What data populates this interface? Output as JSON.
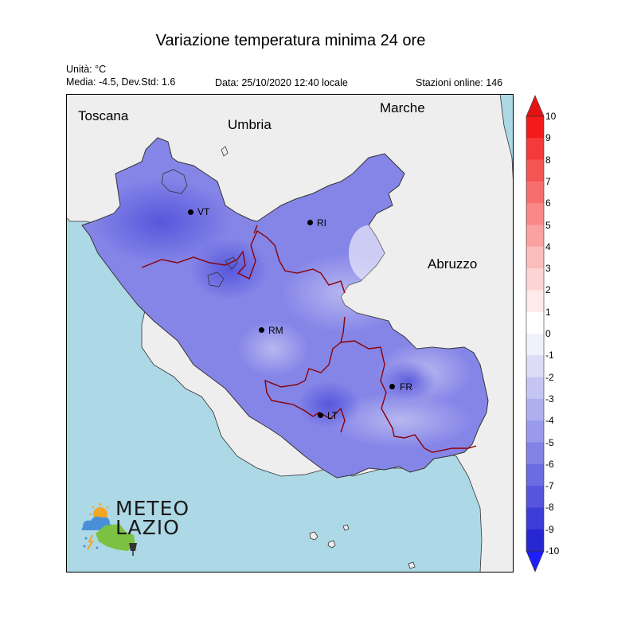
{
  "title": "Variazione temperatura minima 24 ore",
  "unit_label": "Unità: °C",
  "stats_label": "Media: -4.5, Dev.Std: 1.6",
  "date_label": "Data: 25/10/2020 12:40 locale",
  "stations_label": "Stazioni online: 146",
  "regions": [
    "Toscana",
    "Umbria",
    "Marche",
    "Abruzzo"
  ],
  "cities": [
    {
      "code": "VT"
    },
    {
      "code": "RI"
    },
    {
      "code": "RM"
    },
    {
      "code": "FR"
    },
    {
      "code": "LT"
    }
  ],
  "colorbar": {
    "ticks": [
      "10",
      "9",
      "8",
      "7",
      "6",
      "5",
      "4",
      "3",
      "2",
      "1",
      "0",
      "-1",
      "-2",
      "-3",
      "-4",
      "-5",
      "-6",
      "-7",
      "-8",
      "-9",
      "-10"
    ],
    "colors": [
      "#f21a1a",
      "#f43a3a",
      "#f55454",
      "#f76e6e",
      "#f98888",
      "#faa2a2",
      "#fbbcbc",
      "#fdd4d4",
      "#feeaea",
      "#ffffff",
      "#f1f1fb",
      "#dcdcf6",
      "#c5c5f2",
      "#afafee",
      "#9a9aea",
      "#8383e6",
      "#6c6ce2",
      "#5555de",
      "#3d3dd8",
      "#2828d2"
    ],
    "top_arrow_color": "#e41414",
    "bottom_arrow_color": "#1e1eff"
  },
  "map_colors": {
    "sea": "#add8e6",
    "land_outside": "#eeeeee",
    "lazio_fill": "#8585e8",
    "province_border": "#8b0000",
    "region_border": "#333333"
  },
  "logo": {
    "line1": "METEO",
    "line2": "LAZIO"
  }
}
